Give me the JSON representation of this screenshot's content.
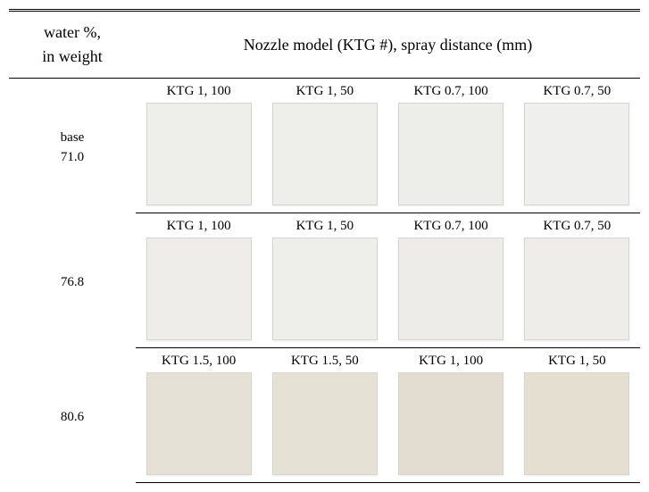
{
  "header": {
    "left": "water %,\nin weight",
    "right": "Nozzle model (KTG #), spray distance (mm)"
  },
  "rows": [
    {
      "left_lines": [
        "base",
        "71.0"
      ],
      "labels": [
        "KTG 1, 100",
        "KTG 1, 50",
        "KTG 0.7, 100",
        "KTG 0.7, 50"
      ],
      "colors": [
        "#eeeeeb",
        "#eeeeeb",
        "#ededea",
        "#efefed"
      ]
    },
    {
      "left_lines": [
        "76.8"
      ],
      "labels": [
        "KTG 1, 100",
        "KTG 1, 50",
        "KTG 0.7, 100",
        "KTG 0.7, 50"
      ],
      "colors": [
        "#eeede9",
        "#eeeeeb",
        "#edece8",
        "#eeede9"
      ]
    },
    {
      "left_lines": [
        "80.6"
      ],
      "labels": [
        "KTG 1.5, 100",
        "KTG 1.5, 50",
        "KTG 1, 100",
        "KTG 1, 50"
      ],
      "colors": [
        "#e5e1d6",
        "#e6e1d5",
        "#e2ddd0",
        "#e4dfd1"
      ]
    }
  ]
}
